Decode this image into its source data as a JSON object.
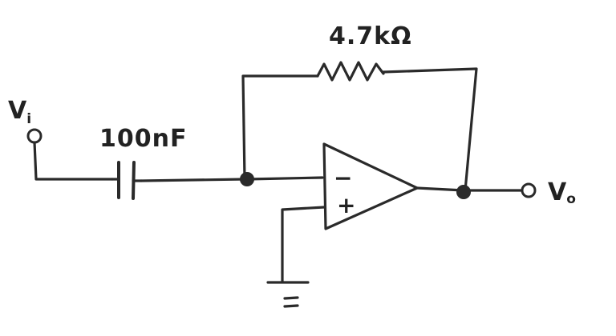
{
  "circuit": {
    "input": {
      "symbol": "V",
      "subscript": "i"
    },
    "output": {
      "symbol": "V",
      "subscript": "o"
    },
    "capacitor": {
      "value": "100nF"
    },
    "resistor": {
      "value": "4.7kΩ"
    },
    "opamp": {
      "inverting_sign": "−",
      "noninverting_sign": "+"
    }
  }
}
